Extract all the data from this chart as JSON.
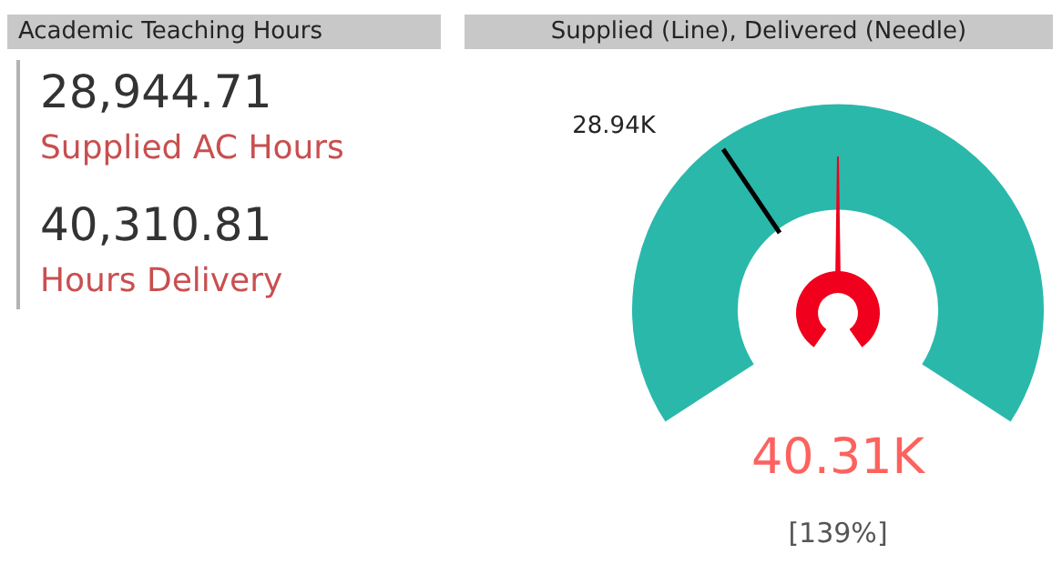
{
  "chart_data": [
    {
      "type": "other",
      "title": "Academic Teaching Hours",
      "annotations": [
        "28,944.71",
        "Supplied AC Hours",
        "40,310.81",
        "Hours Delivery"
      ]
    },
    {
      "type": "pie",
      "title": "Supplied (Line), Delivered (Needle)",
      "categories": [
        null
      ],
      "values": [
        100
      ],
      "colors": [
        "#2ab8ab"
      ],
      "annotations": [
        "28.94K",
        "40.31K",
        "[139%]"
      ]
    }
  ]
}
